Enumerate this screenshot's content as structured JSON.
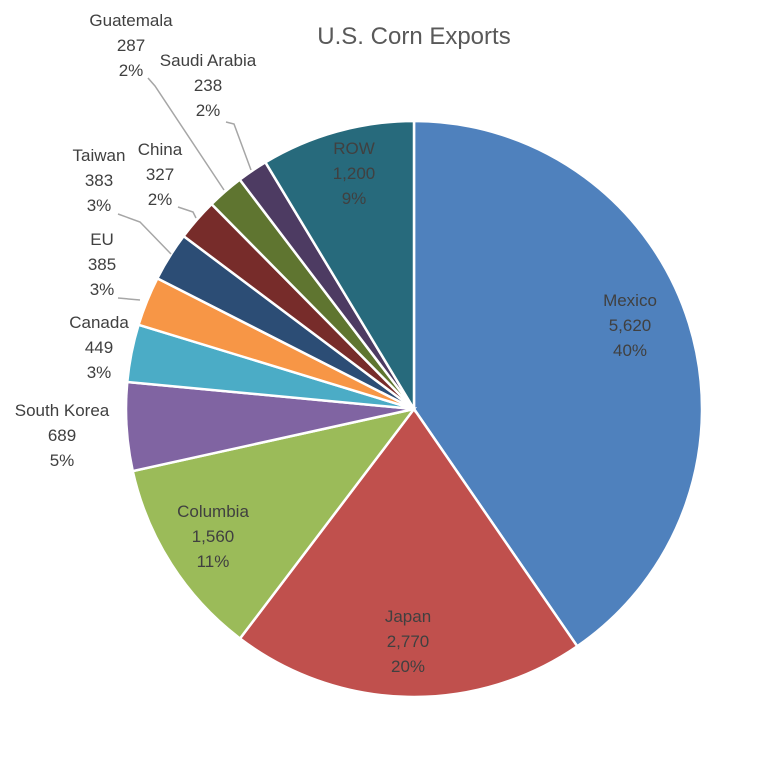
{
  "chart_data": {
    "type": "pie",
    "title": "U.S. Corn Exports",
    "slices": [
      {
        "name": "Mexico",
        "value_label": "5,620",
        "pct": "40%",
        "value": 5620,
        "color": "#4F81BD"
      },
      {
        "name": "Japan",
        "value_label": "2,770",
        "pct": "20%",
        "value": 2770,
        "color": "#C0504D"
      },
      {
        "name": "Columbia",
        "value_label": "1,560",
        "pct": "11%",
        "value": 1560,
        "color": "#9BBB59"
      },
      {
        "name": "South Korea",
        "value_label": "689",
        "pct": "5%",
        "value": 689,
        "color": "#8064A2"
      },
      {
        "name": "Canada",
        "value_label": "449",
        "pct": "3%",
        "value": 449,
        "color": "#4BACC6"
      },
      {
        "name": "EU",
        "value_label": "385",
        "pct": "3%",
        "value": 385,
        "color": "#F79646"
      },
      {
        "name": "Taiwan",
        "value_label": "383",
        "pct": "3%",
        "value": 383,
        "color": "#2C4D75"
      },
      {
        "name": "China",
        "value_label": "327",
        "pct": "2%",
        "value": 327,
        "color": "#772C2A"
      },
      {
        "name": "Guatemala",
        "value_label": "287",
        "pct": "2%",
        "value": 287,
        "color": "#5F7530"
      },
      {
        "name": "Saudi Arabia",
        "value_label": "238",
        "pct": "2%",
        "value": 238,
        "color": "#4D3B62"
      },
      {
        "name": "ROW",
        "value_label": "1,200",
        "pct": "9%",
        "value": 1200,
        "color": "#276A7C"
      }
    ]
  }
}
